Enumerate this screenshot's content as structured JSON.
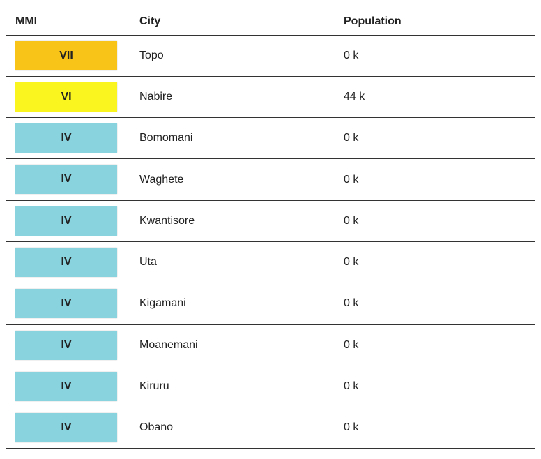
{
  "table": {
    "header": [
      "MMI",
      "City",
      "Population"
    ],
    "rows": [
      {
        "mmi": "VII",
        "color": "#f9c418",
        "city": "Topo",
        "population": "0 k"
      },
      {
        "mmi": "VI",
        "color": "#fbf51f",
        "city": "Nabire",
        "population": "44 k"
      },
      {
        "mmi": "IV",
        "color": "#88d3de",
        "city": "Bomomani",
        "population": "0 k"
      },
      {
        "mmi": "IV",
        "color": "#88d3de",
        "city": "Waghete",
        "population": "0 k"
      },
      {
        "mmi": "IV",
        "color": "#88d3de",
        "city": "Kwantisore",
        "population": "0 k"
      },
      {
        "mmi": "IV",
        "color": "#88d3de",
        "city": "Uta",
        "population": "0 k"
      },
      {
        "mmi": "IV",
        "color": "#88d3de",
        "city": "Kigamani",
        "population": "0 k"
      },
      {
        "mmi": "IV",
        "color": "#88d3de",
        "city": "Moanemani",
        "population": "0 k"
      },
      {
        "mmi": "IV",
        "color": "#88d3de",
        "city": "Kiruru",
        "population": "0 k"
      },
      {
        "mmi": "IV",
        "color": "#88d3de",
        "city": "Obano",
        "population": "0 k"
      }
    ]
  }
}
